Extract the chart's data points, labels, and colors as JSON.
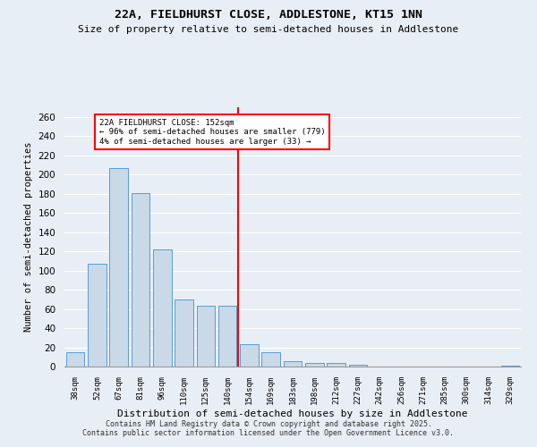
{
  "title1": "22A, FIELDHURST CLOSE, ADDLESTONE, KT15 1NN",
  "title2": "Size of property relative to semi-detached houses in Addlestone",
  "xlabel": "Distribution of semi-detached houses by size in Addlestone",
  "ylabel": "Number of semi-detached properties",
  "categories": [
    "38sqm",
    "52sqm",
    "67sqm",
    "81sqm",
    "96sqm",
    "110sqm",
    "125sqm",
    "140sqm",
    "154sqm",
    "169sqm",
    "183sqm",
    "198sqm",
    "212sqm",
    "227sqm",
    "242sqm",
    "256sqm",
    "271sqm",
    "285sqm",
    "300sqm",
    "314sqm",
    "329sqm"
  ],
  "values": [
    15,
    107,
    207,
    181,
    122,
    70,
    63,
    63,
    23,
    15,
    6,
    4,
    4,
    2,
    0,
    0,
    0,
    0,
    0,
    0,
    1
  ],
  "bar_color": "#c9d9e8",
  "bar_edge_color": "#5b9bd5",
  "vline_index": 8,
  "vline_label": "22A FIELDHURST CLOSE: 152sqm",
  "vline_sublabel1": "← 96% of semi-detached houses are smaller (779)",
  "vline_sublabel2": "4% of semi-detached houses are larger (33) →",
  "vline_color": "red",
  "annotation_box_color": "red",
  "ylim": [
    0,
    270
  ],
  "yticks": [
    0,
    20,
    40,
    60,
    80,
    100,
    120,
    140,
    160,
    180,
    200,
    220,
    240,
    260
  ],
  "bg_color": "#e8eef5",
  "grid_color": "#ffffff",
  "footer1": "Contains HM Land Registry data © Crown copyright and database right 2025.",
  "footer2": "Contains public sector information licensed under the Open Government Licence v3.0."
}
